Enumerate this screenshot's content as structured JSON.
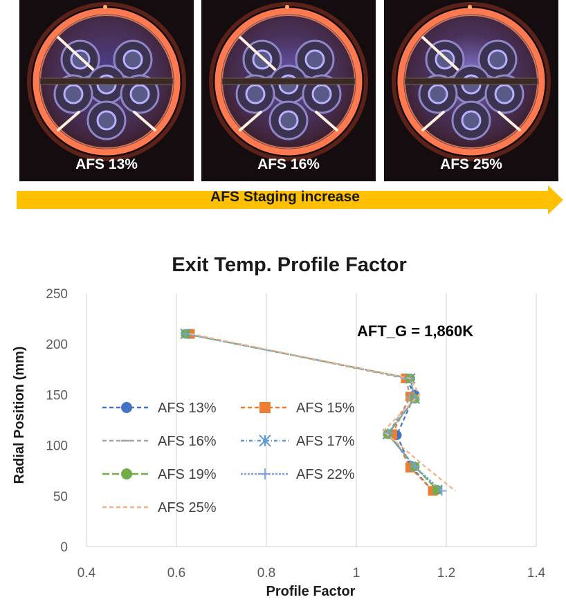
{
  "photos": [
    {
      "caption": "AFS 13%",
      "glow": "#7c6cff",
      "intensity": 0.55
    },
    {
      "caption": "AFS 16%",
      "glow": "#8a78ff",
      "intensity": 0.7
    },
    {
      "caption": "AFS 25%",
      "glow": "#9a8cff",
      "intensity": 0.9
    }
  ],
  "banner": {
    "label": "AFS Staging increase",
    "color": "#ffc000"
  },
  "chart_data": {
    "type": "scatter",
    "title": "Exit Temp. Profile Factor",
    "xlabel": "Profile Factor",
    "ylabel": "Radial Position (mm)",
    "xlim": [
      0.4,
      1.4
    ],
    "ylim": [
      0,
      250
    ],
    "xticks": [
      "0.4",
      "0.6",
      "0.8",
      "1",
      "1.2",
      "1.4"
    ],
    "yticks": [
      "0",
      "50",
      "100",
      "150",
      "200",
      "250"
    ],
    "annotation": "AFT_G = 1,860K",
    "grid": "vertical",
    "legend_position": "left",
    "series": [
      {
        "name": "AFS 13%",
        "color": "#4472c4",
        "marker": "circle",
        "dash": "6,4",
        "points": [
          [
            0.63,
            210
          ],
          [
            1.11,
            166
          ],
          [
            1.13,
            150
          ],
          [
            1.09,
            110
          ],
          [
            1.12,
            80
          ],
          [
            1.17,
            55
          ]
        ]
      },
      {
        "name": "AFS 15%",
        "color": "#ed7d31",
        "marker": "square",
        "dash": "6,4",
        "points": [
          [
            0.63,
            210
          ],
          [
            1.11,
            166
          ],
          [
            1.12,
            148
          ],
          [
            1.08,
            111
          ],
          [
            1.12,
            78
          ],
          [
            1.17,
            55
          ]
        ]
      },
      {
        "name": "AFS 16%",
        "color": "#a5a5a5",
        "marker": "dash",
        "dash": "6,4",
        "points": [
          [
            0.63,
            210
          ],
          [
            1.11,
            166
          ],
          [
            1.12,
            147
          ],
          [
            1.07,
            111
          ],
          [
            1.13,
            79
          ],
          [
            1.18,
            56
          ]
        ]
      },
      {
        "name": "AFS 17%",
        "color": "#5b9bd5",
        "marker": "star",
        "dash": "5,3,1,3",
        "points": [
          [
            0.62,
            210
          ],
          [
            1.12,
            166
          ],
          [
            1.13,
            146
          ],
          [
            1.07,
            111
          ],
          [
            1.13,
            79
          ],
          [
            1.18,
            56
          ]
        ]
      },
      {
        "name": "AFS 19%",
        "color": "#70ad47",
        "marker": "circle",
        "dash": "10,4",
        "points": [
          [
            0.62,
            210
          ],
          [
            1.12,
            166
          ],
          [
            1.13,
            146
          ],
          [
            1.07,
            111
          ],
          [
            1.13,
            79
          ],
          [
            1.18,
            56
          ]
        ]
      },
      {
        "name": "AFS 22%",
        "color": "#7f9fe0",
        "marker": "plus",
        "dash": "3,2",
        "points": [
          [
            0.62,
            210
          ],
          [
            1.12,
            166
          ],
          [
            1.13,
            146
          ],
          [
            1.07,
            112
          ],
          [
            1.13,
            79
          ],
          [
            1.19,
            55
          ]
        ]
      },
      {
        "name": "AFS 25%",
        "color": "#f4b183",
        "marker": "none",
        "dash": "6,4",
        "points": [
          [
            0.63,
            210
          ],
          [
            1.12,
            166
          ],
          [
            1.14,
            150
          ],
          [
            1.06,
            114
          ],
          [
            1.15,
            80
          ],
          [
            1.22,
            55
          ]
        ]
      }
    ]
  }
}
